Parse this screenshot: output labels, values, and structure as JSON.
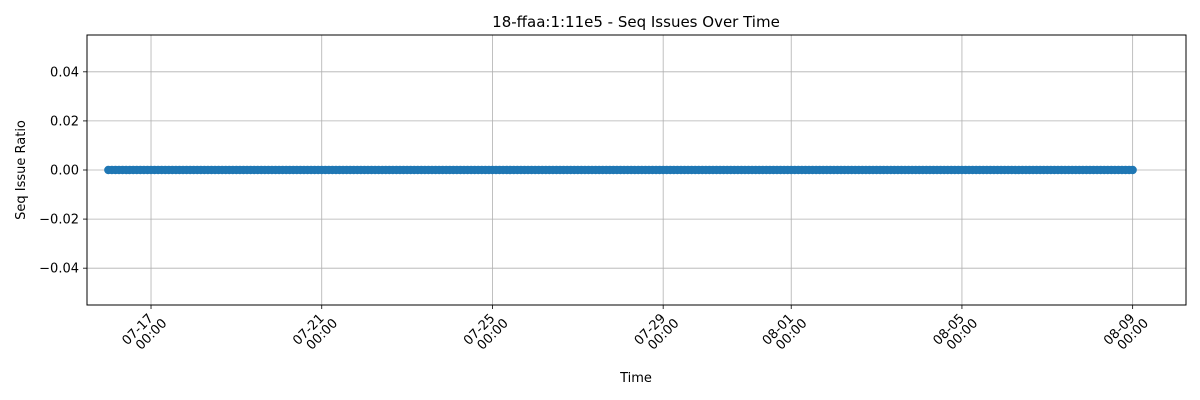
{
  "chart_data": {
    "type": "scatter",
    "title": "18-ffaa:1:11e5 - Seq Issues Over Time",
    "xlabel": "Time",
    "ylabel": "Seq Issue Ratio",
    "x_range": [
      "2024-07-15T12:00",
      "2024-08-10T06:00"
    ],
    "ylim": [
      -0.055,
      0.055
    ],
    "grid": true,
    "legend": "none",
    "series": [
      {
        "x_start": "2024-07-16T00:00",
        "x_end": "2024-08-09T00:00",
        "interval_hours": 2,
        "y_value": 0.0,
        "color": "#1f77b4",
        "marker": "o"
      }
    ],
    "x_ticks": [
      {
        "date": "2024-07-17T00:00",
        "line1": "07-17",
        "line2": "00:00"
      },
      {
        "date": "2024-07-21T00:00",
        "line1": "07-21",
        "line2": "00:00"
      },
      {
        "date": "2024-07-25T00:00",
        "line1": "07-25",
        "line2": "00:00"
      },
      {
        "date": "2024-07-29T00:00",
        "line1": "07-29",
        "line2": "00:00"
      },
      {
        "date": "2024-08-01T00:00",
        "line1": "08-01",
        "line2": "00:00"
      },
      {
        "date": "2024-08-05T00:00",
        "line1": "08-05",
        "line2": "00:00"
      },
      {
        "date": "2024-08-09T00:00",
        "line1": "08-09",
        "line2": "00:00"
      }
    ],
    "y_ticks": [
      {
        "value": 0.04,
        "label": "0.04"
      },
      {
        "value": 0.02,
        "label": "0.02"
      },
      {
        "value": 0.0,
        "label": "0.00"
      },
      {
        "value": -0.02,
        "label": "−0.02"
      },
      {
        "value": -0.04,
        "label": "−0.04"
      }
    ]
  }
}
